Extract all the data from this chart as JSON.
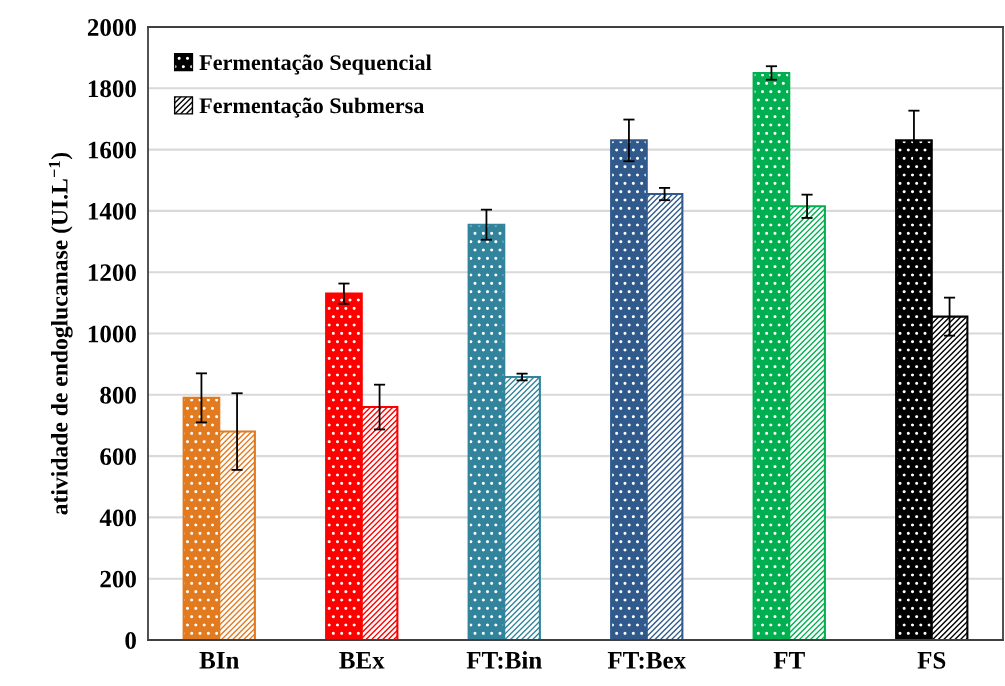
{
  "chart_data": {
    "type": "bar",
    "categories": [
      "BIn",
      "BEx",
      "FT:Bin",
      "FT:Bex",
      "FT",
      "FS"
    ],
    "ylabel": "atividade de endoglucanase (UI.L$^{−1}$)",
    "ylim": [
      0,
      2000
    ],
    "yticks": [
      0,
      200,
      400,
      600,
      800,
      1000,
      1200,
      1400,
      1600,
      1800,
      2000
    ],
    "grid": "y",
    "legend": "top left",
    "series": [
      {
        "name": "Fermentação Sequencial",
        "color": "#000000",
        "colors": [
          "#e27a1f",
          "#ff0000",
          "#31849b",
          "#305a8c",
          "#00b050",
          "#000000"
        ],
        "values": [
          790,
          1130,
          1355,
          1630,
          1850,
          1630
        ],
        "errors": [
          80,
          33,
          49,
          68,
          22,
          97
        ]
      },
      {
        "name": "Fermentação Submersa",
        "color": "#000000",
        "colors": [
          "#e27a1f",
          "#ff0000",
          "#31849b",
          "#305a8c",
          "#00b050",
          "#000000"
        ],
        "values": [
          680,
          760,
          858,
          1455,
          1415,
          1055
        ],
        "errors": [
          125,
          73,
          11,
          20,
          38,
          62
        ]
      }
    ]
  }
}
